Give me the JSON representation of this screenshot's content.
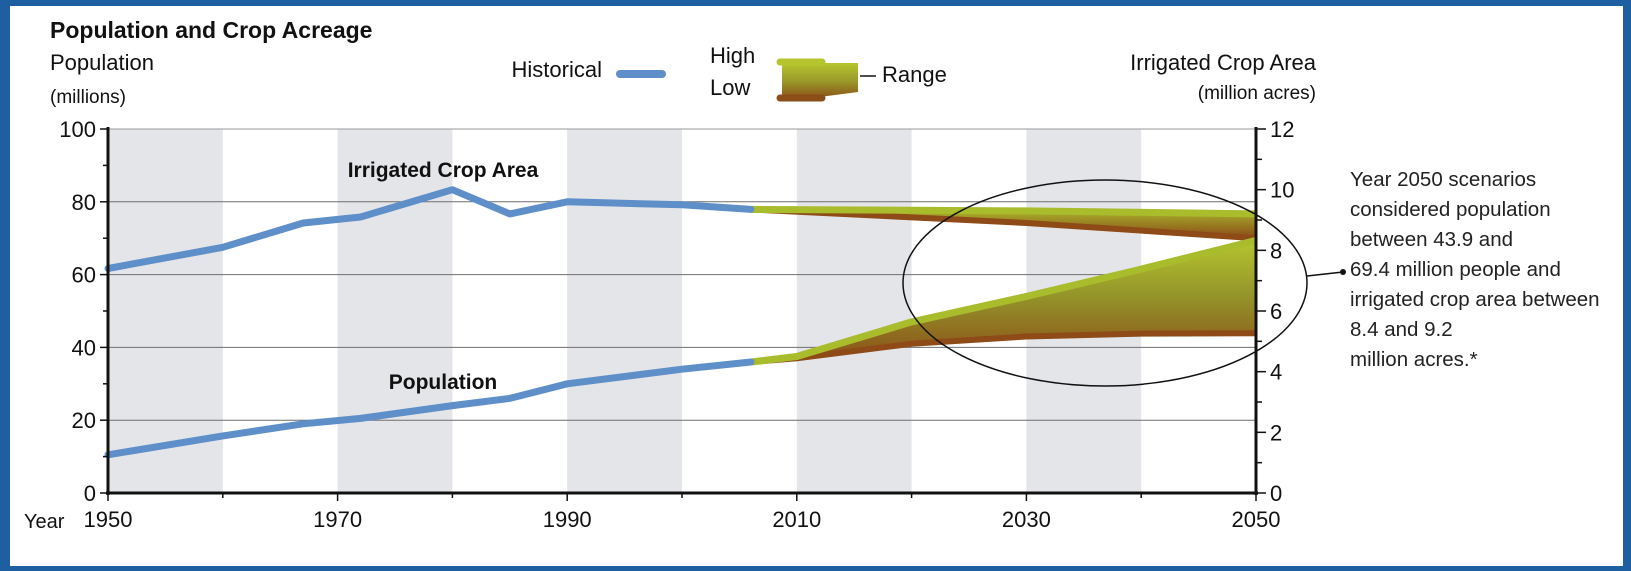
{
  "chart_data": {
    "type": "line",
    "title": "Population and Crop Acreage",
    "left_axis": {
      "label": "Population",
      "units": "(millions)",
      "range": [
        0,
        100
      ],
      "ticks": [
        "0",
        "20",
        "40",
        "60",
        "80",
        "100"
      ]
    },
    "right_axis": {
      "label": "Irrigated Crop Area",
      "units": "(million acres)",
      "range": [
        0,
        12
      ],
      "ticks": [
        "0",
        "2",
        "4",
        "6",
        "8",
        "10",
        "12"
      ]
    },
    "x_axis": {
      "label": "Year",
      "range": [
        1950,
        2050
      ],
      "ticks": [
        "1950",
        "1970",
        "1990",
        "2010",
        "2030",
        "2050"
      ]
    },
    "grid": true,
    "legend": {
      "historical": "Historical",
      "high": "High",
      "low": "Low",
      "range": "Range"
    },
    "series": [
      {
        "name": "Irrigated Crop Area",
        "axis": "right",
        "historical": {
          "x": [
            1950,
            1960,
            1967,
            1972,
            1980,
            1985,
            1990,
            2000,
            2006
          ],
          "y": [
            7.4,
            8.1,
            8.9,
            9.1,
            10.0,
            9.2,
            9.6,
            9.5,
            9.35
          ]
        },
        "projection_high": {
          "x": [
            2006,
            2030,
            2050
          ],
          "y": [
            9.35,
            9.3,
            9.2
          ]
        },
        "projection_low": {
          "x": [
            2006,
            2030,
            2050
          ],
          "y": [
            9.35,
            8.9,
            8.4
          ]
        }
      },
      {
        "name": "Population",
        "axis": "left",
        "historical": {
          "x": [
            1950,
            1960,
            1967,
            1972,
            1980,
            1985,
            1990,
            2000,
            2006
          ],
          "y": [
            10.5,
            15.7,
            19,
            20.5,
            24,
            26,
            30,
            34,
            36
          ]
        },
        "projection_high": {
          "x": [
            2006,
            2010,
            2020,
            2030,
            2040,
            2050
          ],
          "y": [
            36,
            37.5,
            47,
            54,
            61.5,
            69.4
          ]
        },
        "projection_low": {
          "x": [
            2006,
            2010,
            2020,
            2030,
            2040,
            2050
          ],
          "y": [
            36,
            37,
            41,
            43,
            43.8,
            43.9
          ]
        }
      }
    ],
    "annotation": "Year 2050 scenarios considered population between 43.9 and 69.4 million people and irrigated crop area between 8.4 and 9.2 million acres.*",
    "colors": {
      "historical": "#5e8fc8",
      "high": "#a9bc2c",
      "low": "#8e4a17"
    }
  }
}
